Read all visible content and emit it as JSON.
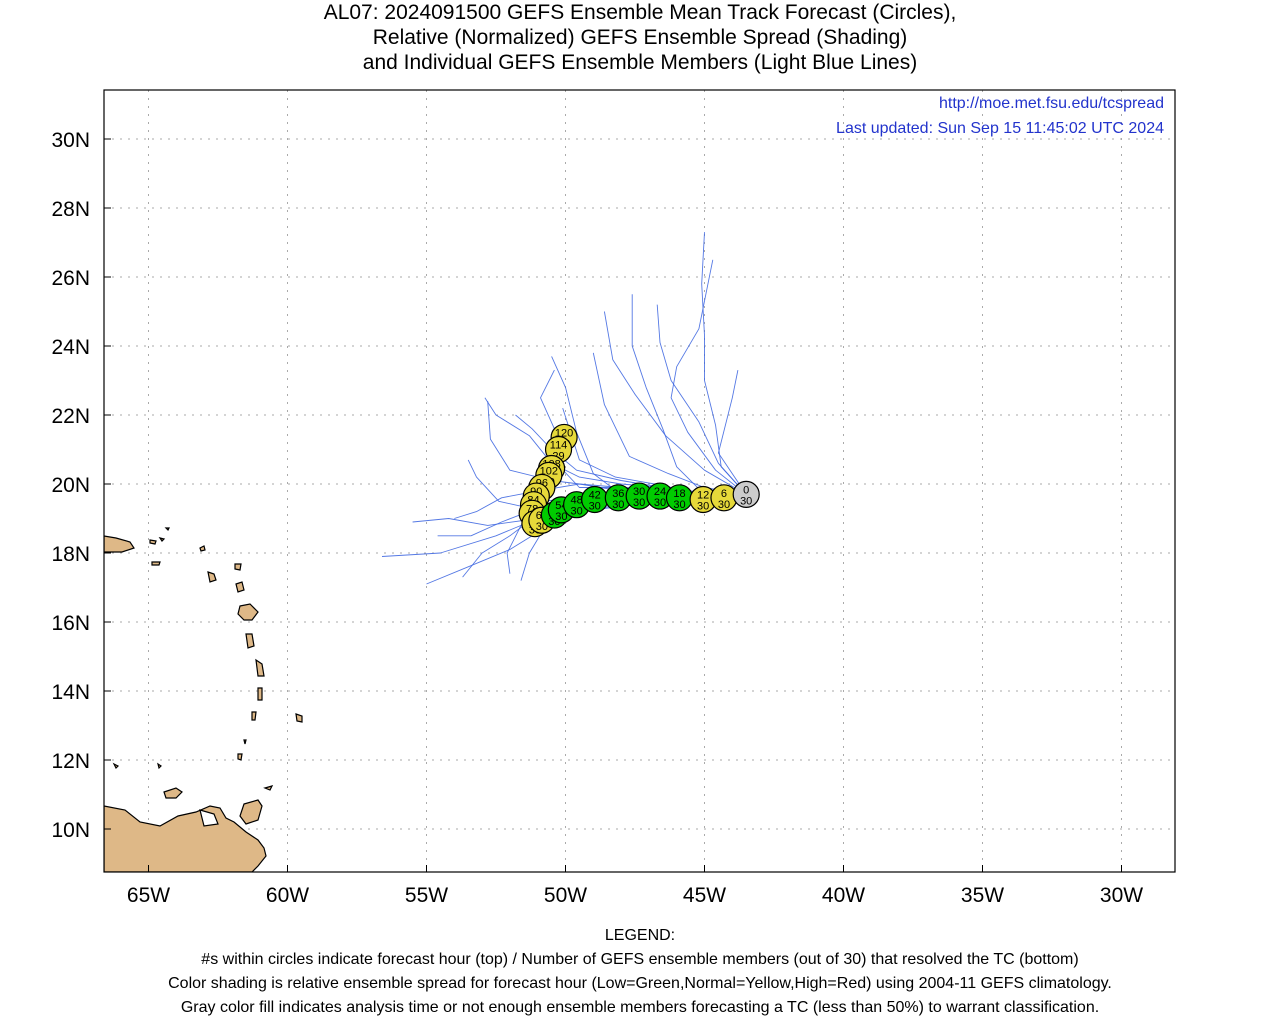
{
  "title": {
    "line1": "AL07: 2024091500 GEFS Ensemble Mean Track Forecast (Circles),",
    "line2": "Relative (Normalized) GEFS Ensemble Spread (Shading)",
    "line3": "and Individual GEFS Ensemble Members (Light Blue Lines)"
  },
  "credits": {
    "url": "http://moe.met.fsu.edu/tcspread",
    "updated": "Last updated: Sun Sep 15 11:45:02 UTC 2024"
  },
  "axes": {
    "lon_ticks": [
      {
        "value": -65,
        "label": "65W"
      },
      {
        "value": -60,
        "label": "60W"
      },
      {
        "value": -55,
        "label": "55W"
      },
      {
        "value": -50,
        "label": "50W"
      },
      {
        "value": -45,
        "label": "45W"
      },
      {
        "value": -40,
        "label": "40W"
      },
      {
        "value": -35,
        "label": "35W"
      },
      {
        "value": -30,
        "label": "30W"
      }
    ],
    "lat_ticks": [
      {
        "value": 10,
        "label": "10N"
      },
      {
        "value": 12,
        "label": "12N"
      },
      {
        "value": 14,
        "label": "14N"
      },
      {
        "value": 16,
        "label": "16N"
      },
      {
        "value": 18,
        "label": "18N"
      },
      {
        "value": 20,
        "label": "20N"
      },
      {
        "value": 22,
        "label": "22N"
      },
      {
        "value": 24,
        "label": "24N"
      },
      {
        "value": 26,
        "label": "26N"
      },
      {
        "value": 28,
        "label": "28N"
      },
      {
        "value": 30,
        "label": "30N"
      }
    ],
    "lon_range": [
      -66.6,
      -28.0
    ],
    "lat_range": [
      8.8,
      31.4
    ],
    "grid": "dotted"
  },
  "colors": {
    "land": "#deb887",
    "member_track": "#4169e1",
    "spread_low": "#00cc00",
    "spread_normal": "#e6d93a",
    "spread_high": "#dd2222",
    "analysis": "#cccccc",
    "credit_text": "#2233cc"
  },
  "mean_track": [
    {
      "hour": "0",
      "members": "30",
      "lon": -43.5,
      "lat": 19.7,
      "spread": "gray"
    },
    {
      "hour": "6",
      "members": "30",
      "lon": -44.3,
      "lat": 19.6,
      "spread": "normal"
    },
    {
      "hour": "12",
      "members": "30",
      "lon": -45.05,
      "lat": 19.55,
      "spread": "normal"
    },
    {
      "hour": "18",
      "members": "30",
      "lon": -45.9,
      "lat": 19.6,
      "spread": "low"
    },
    {
      "hour": "24",
      "members": "30",
      "lon": -46.6,
      "lat": 19.65,
      "spread": "low"
    },
    {
      "hour": "30",
      "members": "30",
      "lon": -47.35,
      "lat": 19.65,
      "spread": "low"
    },
    {
      "hour": "36",
      "members": "30",
      "lon": -48.1,
      "lat": 19.6,
      "spread": "low"
    },
    {
      "hour": "42",
      "members": "30",
      "lon": -48.95,
      "lat": 19.55,
      "spread": "low"
    },
    {
      "hour": "48",
      "members": "30",
      "lon": -49.6,
      "lat": 19.4,
      "spread": "low"
    },
    {
      "hour": "54",
      "members": "30",
      "lon": -50.15,
      "lat": 19.25,
      "spread": "low"
    },
    {
      "hour": "60",
      "members": "30",
      "lon": -50.4,
      "lat": 19.1,
      "spread": "low"
    },
    {
      "hour": "66",
      "members": "30",
      "lon": -50.85,
      "lat": 18.95,
      "spread": "normal"
    },
    {
      "hour": "72",
      "members": "30",
      "lon": -51.1,
      "lat": 18.85,
      "spread": "normal"
    },
    {
      "hour": "78",
      "members": "30",
      "lon": -51.2,
      "lat": 19.15,
      "spread": "normal"
    },
    {
      "hour": "84",
      "members": "30",
      "lon": -51.15,
      "lat": 19.4,
      "spread": "normal"
    },
    {
      "hour": "90",
      "members": "30",
      "lon": -51.05,
      "lat": 19.65,
      "spread": "normal"
    },
    {
      "hour": "96",
      "members": "30",
      "lon": -50.85,
      "lat": 19.9,
      "spread": "normal"
    },
    {
      "hour": "102",
      "members": "30",
      "lon": -50.6,
      "lat": 20.25,
      "spread": "normal"
    },
    {
      "hour": "108",
      "members": "30",
      "lon": -50.5,
      "lat": 20.45,
      "spread": "normal"
    },
    {
      "hour": "114",
      "members": "29",
      "lon": -50.25,
      "lat": 21.0,
      "spread": "normal"
    },
    {
      "hour": "120",
      "members": "26",
      "lon": -50.05,
      "lat": 21.35,
      "spread": "normal"
    }
  ],
  "member_tracks": [
    [
      [
        -43.5,
        19.7
      ],
      [
        -45.0,
        19.7
      ],
      [
        -46.5,
        19.85
      ],
      [
        -48.0,
        19.9
      ],
      [
        -49.5,
        20.0
      ],
      [
        -50.5,
        20.1
      ],
      [
        -52.0,
        20.4
      ],
      [
        -52.7,
        21.3
      ],
      [
        -52.8,
        22.4
      ]
    ],
    [
      [
        -43.5,
        19.7
      ],
      [
        -45.0,
        19.6
      ],
      [
        -46.5,
        19.7
      ],
      [
        -48.0,
        19.6
      ],
      [
        -49.5,
        19.5
      ],
      [
        -51.0,
        19.3
      ],
      [
        -52.3,
        18.9
      ],
      [
        -53.4,
        18.5
      ],
      [
        -54.6,
        18.5
      ]
    ],
    [
      [
        -43.5,
        19.7
      ],
      [
        -45.0,
        19.5
      ],
      [
        -46.5,
        19.6
      ],
      [
        -48.0,
        19.4
      ],
      [
        -49.5,
        19.2
      ],
      [
        -50.8,
        18.7
      ],
      [
        -52.0,
        18.1
      ],
      [
        -53.5,
        17.6
      ],
      [
        -55.0,
        17.1
      ]
    ],
    [
      [
        -43.5,
        19.7
      ],
      [
        -45.0,
        19.6
      ],
      [
        -46.5,
        19.55
      ],
      [
        -48.0,
        19.5
      ],
      [
        -49.5,
        19.3
      ],
      [
        -51.0,
        19.0
      ],
      [
        -52.5,
        18.5
      ],
      [
        -54.5,
        18.0
      ],
      [
        -56.6,
        17.9
      ]
    ],
    [
      [
        -43.5,
        19.7
      ],
      [
        -45.0,
        19.7
      ],
      [
        -46.5,
        19.9
      ],
      [
        -48.0,
        20.0
      ],
      [
        -49.5,
        20.2
      ],
      [
        -50.5,
        20.6
      ],
      [
        -51.3,
        21.4
      ],
      [
        -52.5,
        22.0
      ],
      [
        -52.9,
        22.5
      ]
    ],
    [
      [
        -43.5,
        19.7
      ],
      [
        -45.0,
        19.6
      ],
      [
        -46.5,
        19.7
      ],
      [
        -48.0,
        19.7
      ],
      [
        -49.0,
        20.3
      ],
      [
        -49.6,
        21.5
      ],
      [
        -50.0,
        22.8
      ],
      [
        -50.5,
        23.7
      ]
    ],
    [
      [
        -43.5,
        19.7
      ],
      [
        -45.0,
        19.7
      ],
      [
        -46.0,
        20.5
      ],
      [
        -46.5,
        21.6
      ],
      [
        -47.1,
        22.8
      ],
      [
        -47.6,
        24.0
      ],
      [
        -47.6,
        25.5
      ]
    ],
    [
      [
        -43.5,
        19.7
      ],
      [
        -44.4,
        20.5
      ],
      [
        -44.6,
        21.7
      ],
      [
        -45.0,
        23.0
      ],
      [
        -45.0,
        24.3
      ],
      [
        -45.1,
        25.8
      ],
      [
        -45.0,
        27.3
      ]
    ],
    [
      [
        -43.5,
        19.7
      ],
      [
        -44.5,
        20.6
      ],
      [
        -45.2,
        21.8
      ],
      [
        -46.2,
        23.0
      ],
      [
        -46.6,
        24.1
      ],
      [
        -46.7,
        25.2
      ]
    ],
    [
      [
        -43.5,
        19.7
      ],
      [
        -44.6,
        20.4
      ],
      [
        -45.6,
        21.5
      ],
      [
        -46.2,
        22.5
      ],
      [
        -46.0,
        23.4
      ],
      [
        -45.2,
        24.5
      ],
      [
        -44.7,
        26.5
      ]
    ],
    [
      [
        -43.5,
        19.7
      ],
      [
        -45.0,
        20.4
      ],
      [
        -46.4,
        21.4
      ],
      [
        -47.5,
        22.6
      ],
      [
        -48.3,
        23.6
      ],
      [
        -48.6,
        25.0
      ]
    ],
    [
      [
        -43.5,
        19.7
      ],
      [
        -44.5,
        20.9
      ],
      [
        -44.0,
        22.5
      ],
      [
        -43.8,
        23.3
      ]
    ],
    [
      [
        -43.5,
        19.7
      ],
      [
        -45.0,
        19.9
      ],
      [
        -46.3,
        20.3
      ],
      [
        -47.7,
        20.8
      ],
      [
        -48.6,
        22.3
      ],
      [
        -49.0,
        23.8
      ]
    ],
    [
      [
        -43.5,
        19.7
      ],
      [
        -45.0,
        19.7
      ],
      [
        -46.8,
        20.0
      ],
      [
        -48.2,
        20.2
      ],
      [
        -49.5,
        20.7
      ],
      [
        -50.1,
        22.2
      ]
    ],
    [
      [
        -43.5,
        19.7
      ],
      [
        -45.0,
        19.6
      ],
      [
        -46.5,
        19.6
      ],
      [
        -48.0,
        19.5
      ],
      [
        -49.5,
        19.3
      ],
      [
        -50.7,
        18.8
      ],
      [
        -51.3,
        18.0
      ],
      [
        -51.6,
        17.2
      ]
    ],
    [
      [
        -43.5,
        19.7
      ],
      [
        -45.0,
        19.55
      ],
      [
        -46.5,
        19.5
      ],
      [
        -48.0,
        19.45
      ],
      [
        -49.5,
        19.35
      ],
      [
        -51.0,
        19.1
      ],
      [
        -52.0,
        18.5
      ],
      [
        -53.0,
        18.0
      ],
      [
        -53.7,
        17.3
      ]
    ],
    [
      [
        -43.5,
        19.7
      ],
      [
        -45.0,
        19.6
      ],
      [
        -46.5,
        19.7
      ],
      [
        -48.0,
        19.8
      ],
      [
        -49.5,
        20.0
      ],
      [
        -51.0,
        19.8
      ],
      [
        -52.3,
        19.6
      ],
      [
        -53.2,
        19.2
      ],
      [
        -54.0,
        19.0
      ]
    ],
    [
      [
        -43.5,
        19.7
      ],
      [
        -45.0,
        19.65
      ],
      [
        -46.5,
        19.75
      ],
      [
        -48.0,
        19.7
      ],
      [
        -49.5,
        19.6
      ],
      [
        -50.9,
        19.5
      ],
      [
        -51.6,
        18.8
      ],
      [
        -52.1,
        18.0
      ],
      [
        -52.0,
        17.4
      ]
    ],
    [
      [
        -43.5,
        19.7
      ],
      [
        -45.0,
        19.6
      ],
      [
        -46.5,
        19.5
      ],
      [
        -48.0,
        19.35
      ],
      [
        -49.5,
        19.2
      ],
      [
        -51.0,
        19.0
      ],
      [
        -52.8,
        18.8
      ],
      [
        -54.2,
        19.0
      ],
      [
        -55.5,
        18.9
      ]
    ],
    [
      [
        -43.5,
        19.7
      ],
      [
        -45.0,
        19.7
      ],
      [
        -46.5,
        19.85
      ],
      [
        -48.0,
        19.9
      ],
      [
        -49.5,
        19.9
      ],
      [
        -50.2,
        20.5
      ],
      [
        -50.4,
        21.6
      ],
      [
        -50.9,
        22.5
      ],
      [
        -50.4,
        23.3
      ]
    ],
    [
      [
        -43.5,
        19.7
      ],
      [
        -45.0,
        19.65
      ],
      [
        -46.5,
        19.6
      ],
      [
        -48.0,
        19.55
      ],
      [
        -49.5,
        19.45
      ],
      [
        -51.0,
        19.25
      ],
      [
        -52.4,
        19.5
      ],
      [
        -53.2,
        20.2
      ],
      [
        -53.5,
        20.7
      ]
    ],
    [
      [
        -43.5,
        19.7
      ],
      [
        -45.0,
        19.75
      ],
      [
        -46.5,
        19.9
      ],
      [
        -48.0,
        20.1
      ],
      [
        -49.6,
        20.4
      ],
      [
        -50.5,
        21.0
      ],
      [
        -51.2,
        21.6
      ],
      [
        -51.8,
        22.0
      ]
    ]
  ],
  "legend": {
    "header": "LEGEND:",
    "line1": "#s within circles indicate forecast hour (top) / Number of GEFS ensemble members (out of 30) that resolved the TC (bottom)",
    "line2": "Color shading is relative ensemble spread for forecast hour (Low=Green,Normal=Yellow,High=Red) using 2004-11 GEFS climatology.",
    "line3": "Gray color fill indicates analysis time or not enough ensemble members forecasting a TC (less than 50%) to warrant classification."
  }
}
